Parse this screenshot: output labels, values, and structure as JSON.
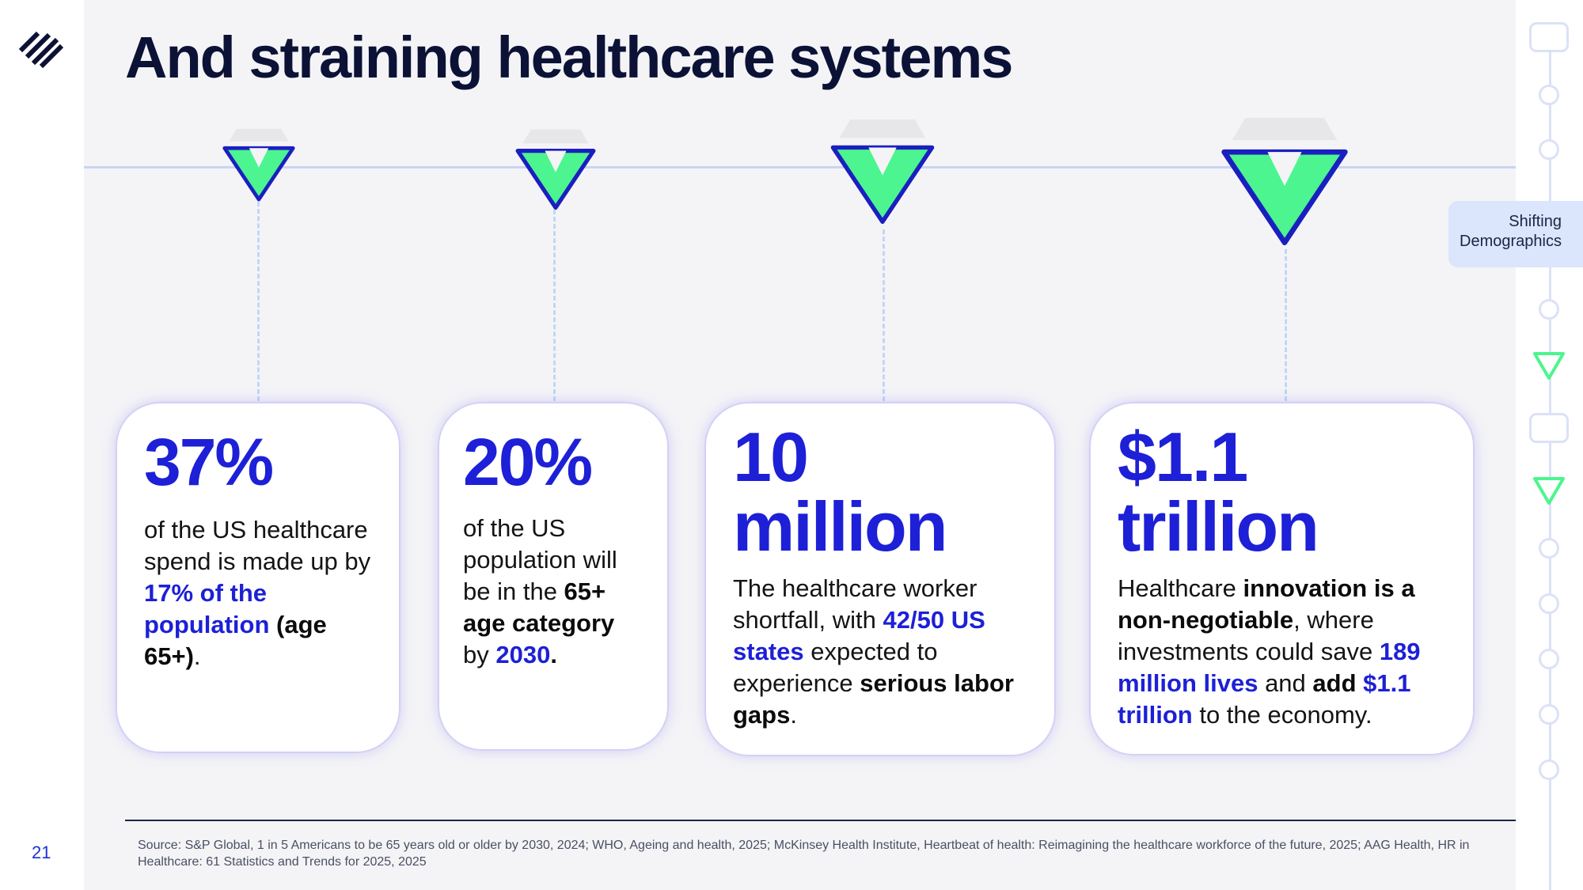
{
  "slide": {
    "title": "And straining healthcare systems",
    "page_number": "21"
  },
  "nav": {
    "section_label_line1": "Shifting",
    "section_label_line2": "Demographics"
  },
  "cards": [
    {
      "stat": "37%",
      "desc": [
        {
          "t": "of the US healthcare spend is made up by ",
          "s": "n"
        },
        {
          "t": "17% of the population",
          "s": "h"
        },
        {
          "t": " ",
          "s": "n"
        },
        {
          "t": "(age 65+)",
          "s": "b"
        },
        {
          "t": ".",
          "s": "n"
        }
      ]
    },
    {
      "stat": "20%",
      "desc": [
        {
          "t": "of the US population will be in the ",
          "s": "n"
        },
        {
          "t": "65+ age category",
          "s": "b"
        },
        {
          "t": " by ",
          "s": "n"
        },
        {
          "t": "2030",
          "s": "h"
        },
        {
          "t": ".",
          "s": "b"
        }
      ]
    },
    {
      "stat_line1": "10",
      "stat_line2": "million",
      "desc": [
        {
          "t": "The healthcare worker shortfall, with ",
          "s": "n"
        },
        {
          "t": "42/50 US states",
          "s": "h"
        },
        {
          "t": " expected to experience ",
          "s": "n"
        },
        {
          "t": "serious labor gaps",
          "s": "b"
        },
        {
          "t": ".",
          "s": "n"
        }
      ]
    },
    {
      "stat_line1": "$1.1",
      "stat_line2": "trillion",
      "desc": [
        {
          "t": "Healthcare ",
          "s": "n"
        },
        {
          "t": "innovation is a non-negotiable",
          "s": "b"
        },
        {
          "t": ", where investments could save ",
          "s": "n"
        },
        {
          "t": "189 million lives",
          "s": "h"
        },
        {
          "t": " and ",
          "s": "n"
        },
        {
          "t": "add",
          "s": "b"
        },
        {
          "t": " ",
          "s": "n"
        },
        {
          "t": "$1.1 trillion",
          "s": "h"
        },
        {
          "t": " to the economy.",
          "s": "n"
        }
      ]
    }
  ],
  "source": "Source: S&P Global, 1 in 5 Americans to be 65 years old or older by 2030, 2024; WHO, Ageing and health, 2025; McKinsey Health Institute, Heartbeat of health: Reimagining the healthcare workforce of the future, 2025; AAG Health, HR in Healthcare: 61 Statistics and Trends for 2025, 2025",
  "colors": {
    "accent_blue": "#1d20d6",
    "marker_green": "#4cf58f",
    "marker_outline": "#1a1fbf",
    "title_navy": "#0b1236"
  }
}
